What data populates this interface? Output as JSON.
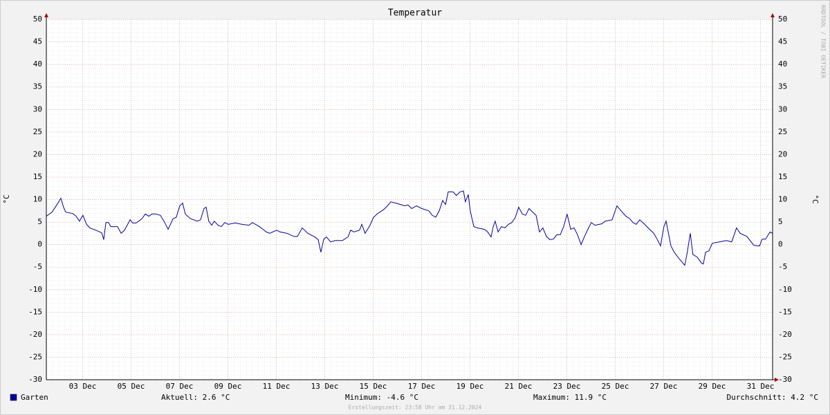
{
  "chart_data": {
    "type": "line",
    "title": "Temperatur",
    "y_label": "°C",
    "watermark": "RRDTOOL / TOBI OETIKER",
    "ylim": [
      -30,
      50
    ],
    "yticks": [
      -30,
      -25,
      -20,
      -15,
      -10,
      -5,
      0,
      5,
      10,
      15,
      20,
      25,
      30,
      35,
      40,
      45,
      50
    ],
    "xlim": [
      1.5,
      31.5
    ],
    "xticks": [
      {
        "value": 3,
        "label": "03 Dec"
      },
      {
        "value": 5,
        "label": "05 Dec"
      },
      {
        "value": 7,
        "label": "07 Dec"
      },
      {
        "value": 9,
        "label": "09 Dec"
      },
      {
        "value": 11,
        "label": "11 Dec"
      },
      {
        "value": 13,
        "label": "13 Dec"
      },
      {
        "value": 15,
        "label": "15 Dec"
      },
      {
        "value": 17,
        "label": "17 Dec"
      },
      {
        "value": 19,
        "label": "19 Dec"
      },
      {
        "value": 21,
        "label": "21 Dec"
      },
      {
        "value": 23,
        "label": "23 Dec"
      },
      {
        "value": 25,
        "label": "25 Dec"
      },
      {
        "value": 27,
        "label": "27 Dec"
      },
      {
        "value": 29,
        "label": "29 Dec"
      },
      {
        "value": 31,
        "label": "31 Dec"
      }
    ],
    "grid": true,
    "x": [
      1.5,
      1.73,
      1.87,
      2.01,
      2.1,
      2.21,
      2.3,
      2.59,
      2.73,
      2.87,
      3.01,
      3.16,
      3.3,
      3.59,
      3.79,
      3.87,
      3.96,
      4.07,
      4.16,
      4.44,
      4.59,
      4.73,
      4.96,
      5.07,
      5.21,
      5.44,
      5.59,
      5.73,
      5.87,
      6.01,
      6.21,
      6.39,
      6.53,
      6.73,
      6.87,
      7.01,
      7.13,
      7.24,
      7.44,
      7.73,
      7.87,
      8.01,
      8.1,
      8.21,
      8.33,
      8.44,
      8.59,
      8.73,
      8.87,
      9.01,
      9.3,
      9.59,
      9.87,
      10.01,
      10.3,
      10.59,
      10.73,
      11.01,
      11.16,
      11.44,
      11.73,
      11.87,
      12.07,
      12.3,
      12.59,
      12.73,
      12.84,
      12.96,
      13.07,
      13.24,
      13.44,
      13.73,
      13.96,
      14.07,
      14.21,
      14.44,
      14.53,
      14.67,
      14.87,
      15.01,
      15.16,
      15.44,
      15.59,
      15.73,
      16.01,
      16.3,
      16.44,
      16.59,
      16.79,
      17.01,
      17.3,
      17.44,
      17.59,
      17.73,
      17.87,
      17.99,
      18.1,
      18.3,
      18.44,
      18.59,
      18.73,
      18.81,
      18.93,
      19.01,
      19.16,
      19.3,
      19.59,
      19.73,
      19.87,
      19.96,
      20.04,
      20.16,
      20.3,
      20.44,
      20.59,
      20.73,
      20.87,
      21.01,
      21.16,
      21.3,
      21.44,
      21.59,
      21.73,
      21.87,
      22.01,
      22.16,
      22.3,
      22.44,
      22.59,
      22.73,
      22.87,
      23.01,
      23.16,
      23.3,
      23.44,
      23.59,
      23.73,
      23.87,
      24.01,
      24.16,
      24.44,
      24.59,
      24.87,
      25.07,
      25.24,
      25.44,
      25.59,
      25.73,
      25.87,
      26.01,
      26.16,
      26.36,
      26.59,
      26.73,
      26.87,
      27.01,
      27.1,
      27.3,
      27.44,
      27.59,
      27.73,
      27.87,
      27.96,
      28.1,
      28.21,
      28.39,
      28.56,
      28.64,
      28.73,
      28.87,
      29.01,
      29.3,
      29.59,
      29.81,
      30.01,
      30.16,
      30.44,
      30.73,
      30.96,
      31.07,
      31.21,
      31.39,
      31.5
    ],
    "series": [
      {
        "name": "Garten",
        "color": "#0000a0",
        "values": [
          6.3,
          7.2,
          8.3,
          9.5,
          10.3,
          8.3,
          7.2,
          6.9,
          6.3,
          5.2,
          6.5,
          4.5,
          3.7,
          3.1,
          2.6,
          1.1,
          4.9,
          4.9,
          4.0,
          4.0,
          2.5,
          3.2,
          5.5,
          4.8,
          4.8,
          5.7,
          6.8,
          6.3,
          6.8,
          6.8,
          6.5,
          4.9,
          3.4,
          5.7,
          6.1,
          8.6,
          9.2,
          6.8,
          5.8,
          5.2,
          5.5,
          8.0,
          8.3,
          5.2,
          4.3,
          5.2,
          4.3,
          4.0,
          4.9,
          4.5,
          4.8,
          4.5,
          4.3,
          4.9,
          4.0,
          2.8,
          2.5,
          3.2,
          2.8,
          2.5,
          1.8,
          1.8,
          3.7,
          2.5,
          1.7,
          1.1,
          -1.7,
          1.2,
          1.7,
          0.6,
          0.9,
          0.9,
          1.7,
          3.2,
          2.8,
          3.2,
          4.5,
          2.5,
          4.3,
          6.0,
          6.8,
          7.8,
          8.6,
          9.5,
          9.1,
          8.6,
          8.8,
          8.0,
          8.6,
          8.0,
          7.5,
          6.5,
          6.1,
          7.5,
          9.8,
          8.9,
          11.7,
          11.7,
          10.9,
          11.7,
          11.9,
          9.5,
          11.1,
          7.5,
          4.0,
          3.7,
          3.4,
          2.8,
          1.7,
          4.0,
          5.2,
          2.8,
          4.0,
          3.7,
          4.5,
          4.9,
          6.0,
          8.3,
          6.8,
          6.5,
          8.0,
          7.2,
          6.5,
          2.8,
          3.7,
          1.8,
          1.1,
          1.2,
          2.2,
          2.2,
          4.0,
          6.8,
          3.4,
          3.7,
          2.2,
          0,
          1.8,
          3.4,
          4.9,
          4.3,
          4.6,
          5.2,
          5.5,
          8.6,
          7.5,
          6.3,
          5.8,
          4.9,
          4.5,
          5.5,
          4.8,
          3.7,
          2.5,
          1.2,
          -0.3,
          4.0,
          5.2,
          -0.3,
          -1.7,
          -2.8,
          -3.7,
          -4.6,
          -2.2,
          2.5,
          -2.2,
          -2.8,
          -4.1,
          -4.3,
          -1.7,
          -1.4,
          0.3,
          0.6,
          0.9,
          0.6,
          3.7,
          2.5,
          1.8,
          -0.2,
          -0.3,
          1.2,
          1.2,
          2.8,
          2.5
        ]
      }
    ],
    "stats": [
      "Aktuell: 2.6 °C",
      "Minimum: -4.6 °C",
      "Maximum: 11.9 °C",
      "Durchschnitt: 4.2 °C"
    ],
    "footer": "Erstellungszeit: 23:58 Uhr am 31.12.2024"
  }
}
